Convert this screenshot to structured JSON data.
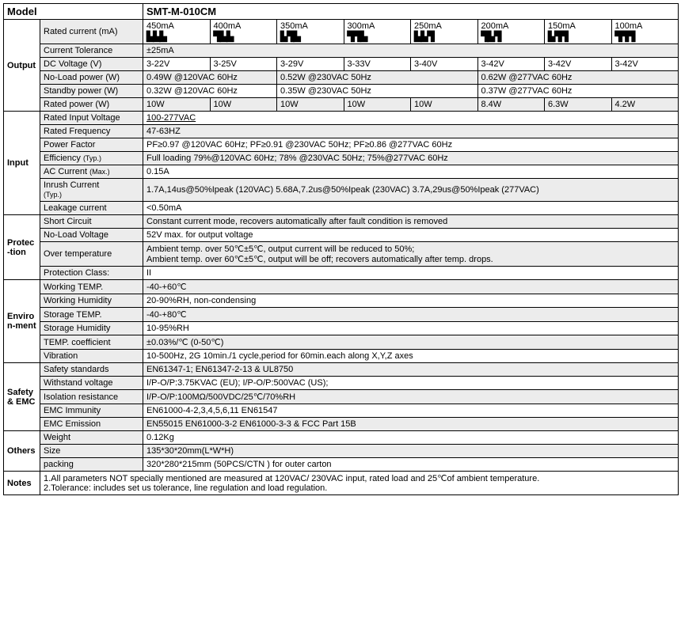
{
  "header": {
    "model_label": "Model",
    "model_value": "SMT-M-010CM"
  },
  "cols": {
    "currents": [
      "450mA",
      "400mA",
      "350mA",
      "300mA",
      "250mA",
      "200mA",
      "150mA",
      "100mA"
    ],
    "icons": [
      "▙▙▙",
      "▜▙▙",
      "▙▜▙",
      "▜▜▙",
      "▙▙▜",
      "▜▙▜",
      "▙▜▜",
      "▜▜▜"
    ]
  },
  "output": {
    "section": "Output",
    "rated_current_label": "Rated current (mA)",
    "current_tol_label": "Current Tolerance",
    "current_tol": "±25mA",
    "dcv_label": "DC Voltage (V)",
    "dcv": [
      "3-22V",
      "3-25V",
      "3-29V",
      "3-33V",
      "3-40V",
      "3-42V",
      "3-42V",
      "3-42V"
    ],
    "noload_label": "No-Load power (W)",
    "noload_a": "0.49W @120VAC 60Hz",
    "noload_b": "0.52W @230VAC 50Hz",
    "noload_c": "0.62W @277VAC 60Hz",
    "standby_label": "Standby power (W)",
    "standby_a": "0.32W @120VAC 60Hz",
    "standby_b": "0.35W @230VAC 50Hz",
    "standby_c": "0.37W @277VAC 60Hz",
    "ratedp_label": "Rated power (W)",
    "ratedp": [
      "10W",
      "10W",
      "10W",
      "10W",
      "10W",
      "8.4W",
      "6.3W",
      "4.2W"
    ]
  },
  "input": {
    "section": "Input",
    "riv_label": "Rated Input Voltage",
    "riv": "100-277VAC",
    "rf_label": "Rated Frequency",
    "rf": "47-63HZ",
    "pf_label": "Power Factor",
    "pf": "PF≥0.97 @120VAC 60Hz;       PF≥0.91 @230VAC 50Hz;       PF≥0.86 @277VAC 60Hz",
    "eff_label": "Efficiency ",
    "eff_typ": "(Typ.)",
    "eff": "Full loading     79%@120VAC 60Hz;      78% @230VAC 50Hz;     75%@277VAC 60Hz",
    "ac_label": "AC Current ",
    "ac_max": "(Max.)",
    "ac": "0.15A",
    "inrush_label": "Inrush Current ",
    "inrush_typ": "(Typ.)",
    "inrush": "1.7A,14us@50%Ipeak (120VAC)    5.68A,7.2us@50%Ipeak (230VAC)       3.7A,29us@50%Ipeak (277VAC)",
    "leak_label": "Leakage current",
    "leak": "<0.50mA"
  },
  "prot": {
    "section": "Protec-tion",
    "sc_label": "Short Circuit",
    "sc": "Constant current mode, recovers automatically after fault condition is removed",
    "nlv_label": "No-Load Voltage",
    "nlv": "52V max. for output voltage",
    "ot_label": "Over temperature",
    "ot_a": "Ambient temp. over 50℃±5℃, output current will be reduced to 50%;",
    "ot_b": "Ambient temp. over 60℃±5℃, output will be off; recovers automatically after temp. drops.",
    "pc_label": "Protection Class:",
    "pc": "II"
  },
  "env": {
    "section": "Environ-ment",
    "wt_label": "Working TEMP.",
    "wt": "-40-+60℃",
    "wh_label": "Working Humidity",
    "wh": "20-90%RH, non-condensing",
    "st_label": "Storage TEMP.",
    "st": "-40-+80℃",
    "sh_label": "Storage Humidity",
    "sh": "10-95%RH",
    "tc_label": "TEMP. coefficient",
    "tc": "±0.03%/℃ (0-50℃)",
    "vib_label": "Vibration",
    "vib": "10-500Hz, 2G 10min./1 cycle,period for 60min.each along X,Y,Z axes"
  },
  "safety": {
    "section": "Safety & EMC",
    "ss_label": "Safety standards",
    "ss": "EN61347-1; EN61347-2-13    &    UL8750",
    "wv_label": "Withstand voltage",
    "wv": "I/P-O/P:3.75KVAC (EU);    I/P-O/P:500VAC (US);",
    "ir_label": "Isolation resistance",
    "ir": "I/P-O/P:100MΩ/500VDC/25℃/70%RH",
    "emci_label": "EMC Immunity",
    "emci": "EN61000-4-2,3,4,5,6,11          EN61547",
    "emce_label": "EMC Emission",
    "emce": "EN55015          EN61000-3-2       EN61000-3-3    &    FCC Part 15B"
  },
  "others": {
    "section": "Others",
    "w_label": "Weight",
    "w": "0.12Kg",
    "s_label": "Size",
    "s": "135*30*20mm(L*W*H)",
    "p_label": "packing",
    "p": "320*280*215mm (50PCS/CTN ) for outer carton"
  },
  "notes": {
    "section": "Notes",
    "n1": "1.All parameters NOT specially mentioned are measured at 120VAC/ 230VAC input, rated load and 25℃of ambient temperature.",
    "n2": "2.Tolerance: includes set us tolerance, line regulation and load regulation."
  }
}
